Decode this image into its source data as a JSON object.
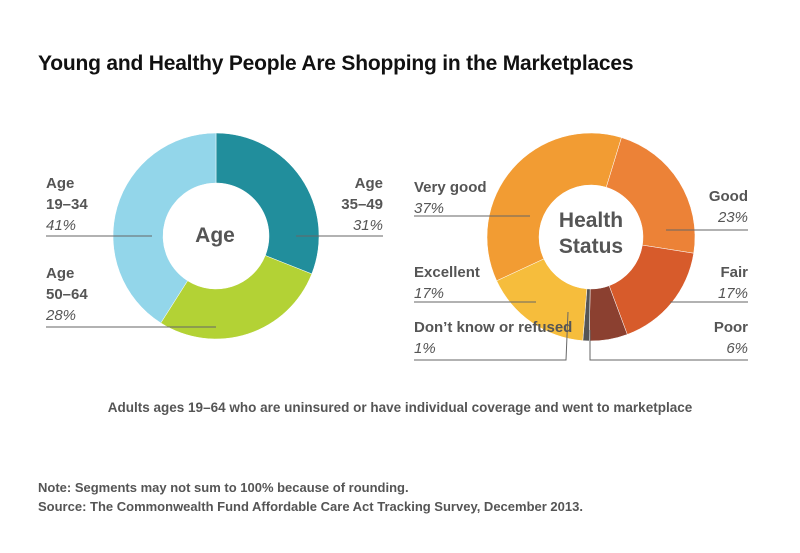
{
  "title": "Young and Healthy People Are Shopping in the Marketplaces",
  "chart_data": [
    {
      "type": "pie",
      "donut": true,
      "center_label": "Age",
      "slices": [
        {
          "label_lines": [
            "Age",
            "35–49"
          ],
          "value": 31,
          "value_label": "31%",
          "color": "#218e9c"
        },
        {
          "label_lines": [
            "Age",
            "50–64"
          ],
          "value": 28,
          "value_label": "28%",
          "color": "#b3d235"
        },
        {
          "label_lines": [
            "Age",
            "19–34"
          ],
          "value": 41,
          "value_label": "41%",
          "color": "#93d6ea"
        }
      ]
    },
    {
      "type": "pie",
      "donut": true,
      "center_label": [
        "Health",
        "Status"
      ],
      "slices": [
        {
          "label_lines": [
            "Good"
          ],
          "value": 23,
          "value_label": "23%",
          "color": "#ec8237"
        },
        {
          "label_lines": [
            "Fair"
          ],
          "value": 17,
          "value_label": "17%",
          "color": "#d75b2b"
        },
        {
          "label_lines": [
            "Poor"
          ],
          "value": 6,
          "value_label": "6%",
          "color": "#8b4030"
        },
        {
          "label_lines": [
            "Don’t know or refused"
          ],
          "value": 1,
          "value_label": "1%",
          "color": "#555555"
        },
        {
          "label_lines": [
            "Excellent"
          ],
          "value": 17,
          "value_label": "17%",
          "color": "#f6bd3c"
        },
        {
          "label_lines": [
            "Very good"
          ],
          "value": 37,
          "value_label": "37%",
          "color": "#f29c33"
        }
      ]
    }
  ],
  "caption": "Adults ages 19–64 who are uninsured or have individual coverage and went to marketplace",
  "notes": [
    "Note: Segments may not sum to 100% because of rounding.",
    "Source: The Commonwealth Fund Affordable Care Act Tracking Survey, December 2013."
  ]
}
